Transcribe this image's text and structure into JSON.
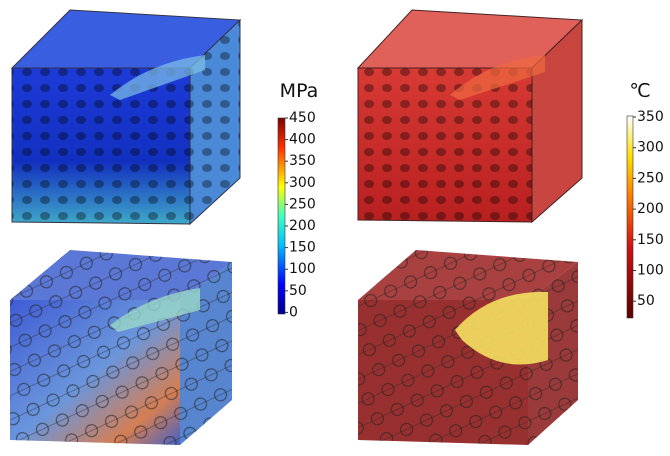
{
  "colorbars": [
    {
      "title": "MPa",
      "ticks": [
        "450",
        "400",
        "350",
        "300",
        "250",
        "200",
        "150",
        "100",
        "50",
        "0"
      ]
    },
    {
      "title": "℃",
      "ticks": [
        "350",
        "300",
        "250",
        "200",
        "150",
        "100",
        "50"
      ]
    }
  ]
}
